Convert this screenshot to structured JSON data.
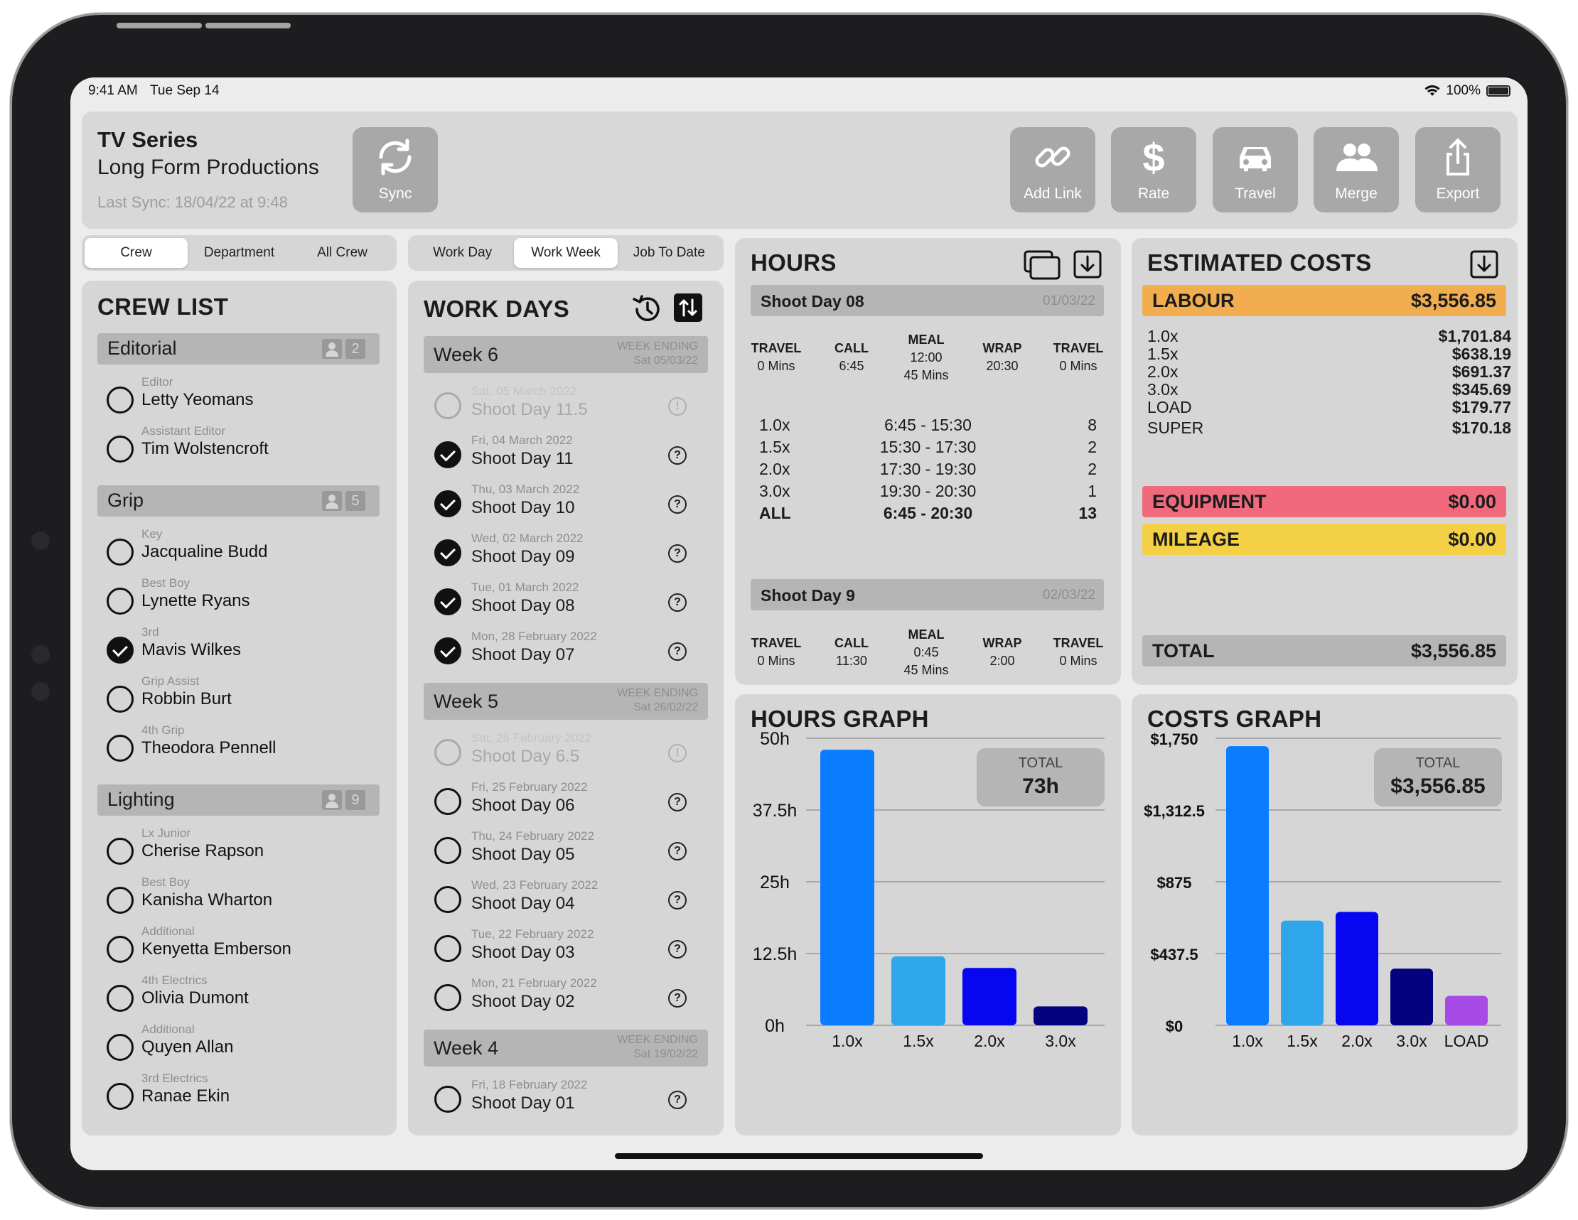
{
  "status_bar": {
    "time": "9:41 AM",
    "date": "Tue Sep 14",
    "battery": "100%"
  },
  "header": {
    "title": "TV Series",
    "subtitle": "Long Form Productions",
    "last_sync": "Last Sync: 18/04/22 at 9:48",
    "sync_label": "Sync",
    "toolbar": {
      "add_link": "Add Link",
      "rate": "Rate",
      "travel": "Travel",
      "merge": "Merge",
      "export": "Export"
    }
  },
  "crew_tabs": [
    "Crew",
    "Department",
    "All Crew"
  ],
  "work_tabs": [
    "Work Day",
    "Work Week",
    "Job To Date"
  ],
  "crew_list": {
    "title": "CREW LIST",
    "groups": [
      {
        "name": "Editorial",
        "count": "2",
        "members": [
          {
            "role": "Editor",
            "name": "Letty Yeomans",
            "checked": false
          },
          {
            "role": "Assistant Editor",
            "name": "Tim Wolstencroft",
            "checked": false
          }
        ]
      },
      {
        "name": "Grip",
        "count": "5",
        "members": [
          {
            "role": "Key",
            "name": "Jacqualine Budd",
            "checked": false
          },
          {
            "role": "Best Boy",
            "name": "Lynette Ryans",
            "checked": false
          },
          {
            "role": "3rd",
            "name": "Mavis Wilkes",
            "checked": true
          },
          {
            "role": "Grip Assist",
            "name": "Robbin Burt",
            "checked": false
          },
          {
            "role": "4th Grip",
            "name": "Theodora Pennell",
            "checked": false
          }
        ]
      },
      {
        "name": "Lighting",
        "count": "9",
        "members": [
          {
            "role": "Lx Junior",
            "name": "Cherise Rapson",
            "checked": false
          },
          {
            "role": "Best Boy",
            "name": "Kanisha Wharton",
            "checked": false
          },
          {
            "role": "Additional",
            "name": "Kenyetta Emberson",
            "checked": false
          },
          {
            "role": "4th Electrics",
            "name": "Olivia Dumont",
            "checked": false
          },
          {
            "role": "Additional",
            "name": "Quyen Allan",
            "checked": false
          },
          {
            "role": "3rd Electrics",
            "name": "Ranae Ekin",
            "checked": false
          }
        ]
      }
    ]
  },
  "work_days": {
    "title": "WORK DAYS",
    "weeks": [
      {
        "name": "Week 6",
        "ending_label": "WEEK ENDING",
        "ending_date": "Sat 05/03/22",
        "days": [
          {
            "date": "Sat, 05 March 2022",
            "name": "Shoot Day 11.5",
            "state": "faded"
          },
          {
            "date": "Fri, 04 March 2022",
            "name": "Shoot Day 11",
            "state": "checked"
          },
          {
            "date": "Thu, 03 March 2022",
            "name": "Shoot Day 10",
            "state": "checked"
          },
          {
            "date": "Wed, 02 March 2022",
            "name": "Shoot Day 09",
            "state": "checked"
          },
          {
            "date": "Tue, 01 March 2022",
            "name": "Shoot Day 08",
            "state": "checked"
          },
          {
            "date": "Mon, 28 February 2022",
            "name": "Shoot Day 07",
            "state": "checked"
          }
        ]
      },
      {
        "name": "Week 5",
        "ending_label": "WEEK ENDING",
        "ending_date": "Sat 26/02/22",
        "days": [
          {
            "date": "Sat, 26 February 2022",
            "name": "Shoot Day 6.5",
            "state": "faded"
          },
          {
            "date": "Fri, 25 February 2022",
            "name": "Shoot Day 06",
            "state": "empty"
          },
          {
            "date": "Thu, 24 February 2022",
            "name": "Shoot Day 05",
            "state": "empty"
          },
          {
            "date": "Wed, 23 February 2022",
            "name": "Shoot Day 04",
            "state": "empty"
          },
          {
            "date": "Tue, 22 February 2022",
            "name": "Shoot Day 03",
            "state": "empty"
          },
          {
            "date": "Mon, 21 February 2022",
            "name": "Shoot Day 02",
            "state": "empty"
          }
        ]
      },
      {
        "name": "Week 4",
        "ending_label": "WEEK ENDING",
        "ending_date": "Sat 19/02/22",
        "days": [
          {
            "date": "Fri, 18 February 2022",
            "name": "Shoot Day 01",
            "state": "empty"
          }
        ]
      }
    ]
  },
  "hours": {
    "title": "HOURS",
    "days": [
      {
        "name": "Shoot Day 08",
        "date": "01/03/22",
        "times": [
          {
            "label": "TRAVEL",
            "value": "0 Mins"
          },
          {
            "label": "CALL",
            "value": "6:45"
          },
          {
            "label": "MEAL",
            "value": "12:00",
            "extra": "45 Mins"
          },
          {
            "label": "WRAP",
            "value": "20:30"
          },
          {
            "label": "TRAVEL",
            "value": "0 Mins"
          }
        ],
        "rows": [
          {
            "rate": "1.0x",
            "range": "6:45 - 15:30",
            "hours": "8"
          },
          {
            "rate": "1.5x",
            "range": "15:30 - 17:30",
            "hours": "2"
          },
          {
            "rate": "2.0x",
            "range": "17:30 - 19:30",
            "hours": "2"
          },
          {
            "rate": "3.0x",
            "range": "19:30 - 20:30",
            "hours": "1"
          },
          {
            "rate": "ALL",
            "range": "6:45 - 20:30",
            "hours": "13"
          }
        ]
      },
      {
        "name": "Shoot Day 9",
        "date": "02/03/22",
        "times": [
          {
            "label": "TRAVEL",
            "value": "0 Mins"
          },
          {
            "label": "CALL",
            "value": "11:30"
          },
          {
            "label": "MEAL",
            "value": "0:45",
            "extra": "45 Mins"
          },
          {
            "label": "WRAP",
            "value": "2:00"
          },
          {
            "label": "TRAVEL",
            "value": "0 Mins"
          }
        ]
      }
    ]
  },
  "costs": {
    "title": "ESTIMATED COSTS",
    "labour": {
      "label": "LABOUR",
      "value": "$3,556.85",
      "color": "#f2ae4e"
    },
    "labour_rows": [
      {
        "label": "1.0x",
        "value": "$1,701.84"
      },
      {
        "label": "1.5x",
        "value": "$638.19"
      },
      {
        "label": "2.0x",
        "value": "$691.37"
      },
      {
        "label": "3.0x",
        "value": "$345.69"
      },
      {
        "label": "LOAD",
        "value": "$179.77"
      },
      {
        "label": "SUPER",
        "value": "$170.18"
      }
    ],
    "equipment": {
      "label": "EQUIPMENT",
      "value": "$0.00",
      "color": "#f0697c"
    },
    "mileage": {
      "label": "MILEAGE",
      "value": "$0.00",
      "color": "#f3d046"
    },
    "total": {
      "label": "TOTAL",
      "value": "$3,556.85"
    }
  },
  "chart_data": [
    {
      "type": "bar",
      "title": "HOURS GRAPH",
      "categories": [
        "1.0x",
        "1.5x",
        "2.0x",
        "3.0x"
      ],
      "values": [
        48,
        12,
        10,
        3.3
      ],
      "colors": [
        "#0a7cff",
        "#30a6ea",
        "#0606f0",
        "#03037f"
      ],
      "ylim": [
        0,
        50
      ],
      "yticks": [
        "0h",
        "12.5h",
        "25h",
        "37.5h",
        "50h"
      ],
      "total_label": "TOTAL",
      "total_value": "73h",
      "grid": true
    },
    {
      "type": "bar",
      "title": "COSTS GRAPH",
      "categories": [
        "1.0x",
        "1.5x",
        "2.0x",
        "3.0x",
        "LOAD"
      ],
      "values": [
        1701.84,
        638.19,
        691.37,
        345.69,
        179.77
      ],
      "colors": [
        "#0a7cff",
        "#30a6ea",
        "#0606f0",
        "#03037f",
        "#a64be6"
      ],
      "ylim": [
        0,
        1750
      ],
      "yticks": [
        "$0",
        "$437.5",
        "$875",
        "$1,312.5",
        "$1,750"
      ],
      "total_label": "TOTAL",
      "total_value": "$3,556.85",
      "grid": true
    }
  ]
}
